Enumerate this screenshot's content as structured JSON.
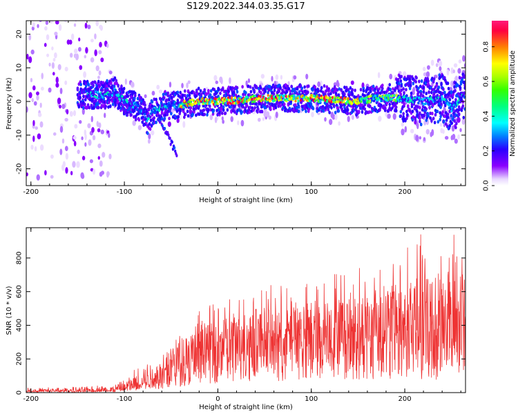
{
  "title": "S129.2022.344.03.35.G17",
  "chart_data": [
    {
      "type": "heatmap",
      "xlabel": "Height of straight line (km)",
      "ylabel": "Frequency (Hz)",
      "xlim": [
        -205,
        265
      ],
      "ylim": [
        -25,
        24
      ],
      "xticks": [
        -200,
        -100,
        0,
        100,
        200
      ],
      "yticks": [
        -20,
        -10,
        0,
        10,
        20
      ],
      "colorbar": {
        "label": "Normalized spectral amplitude",
        "range": [
          0,
          0.95
        ],
        "ticks": [
          0.0,
          0.2,
          0.4,
          0.6,
          0.8
        ],
        "colormap": [
          "#ffffff",
          "#8a00ff",
          "#2a00ff",
          "#00c8ff",
          "#00ff80",
          "#66ff00",
          "#ffff00",
          "#ff8000",
          "#ff0050",
          "#ff1a7a"
        ]
      },
      "ridge": {
        "x": [
          -150,
          -135,
          -120,
          -110,
          -100,
          -90,
          -80,
          -75,
          -70,
          -60,
          -50,
          -40,
          -20,
          0,
          50,
          100,
          150,
          170,
          190,
          200,
          220,
          240,
          250,
          265
        ],
        "y": [
          2,
          2,
          2,
          3,
          0,
          -1,
          -3,
          -6,
          -3,
          -2,
          -1,
          -1,
          0,
          0,
          1,
          1,
          0,
          1,
          1,
          1,
          0,
          1,
          -2,
          2
        ]
      }
    },
    {
      "type": "line",
      "xlabel": "Height of straight line (km)",
      "ylabel": "SNR (10 * v/v)",
      "xlim": [
        -205,
        265
      ],
      "ylim": [
        0,
        980
      ],
      "xticks": [
        -200,
        -100,
        0,
        100,
        200
      ],
      "yticks": [
        0,
        200,
        400,
        600,
        800
      ],
      "color": "#ee3333",
      "envelope": {
        "x": [
          -205,
          -150,
          -110,
          -100,
          -90,
          -80,
          -70,
          -60,
          -50,
          -40,
          -30,
          -20,
          -10,
          0,
          20,
          40,
          60,
          80,
          100,
          120,
          140,
          160,
          180,
          200,
          220,
          240,
          265
        ],
        "mean": [
          8,
          10,
          15,
          30,
          50,
          70,
          80,
          110,
          150,
          180,
          210,
          230,
          260,
          280,
          300,
          320,
          330,
          340,
          350,
          360,
          370,
          380,
          380,
          390,
          380,
          380,
          370
        ],
        "max": [
          30,
          35,
          50,
          80,
          140,
          170,
          200,
          260,
          340,
          420,
          460,
          490,
          520,
          560,
          580,
          640,
          640,
          640,
          660,
          700,
          740,
          760,
          800,
          860,
          960,
          940,
          960
        ]
      }
    }
  ]
}
